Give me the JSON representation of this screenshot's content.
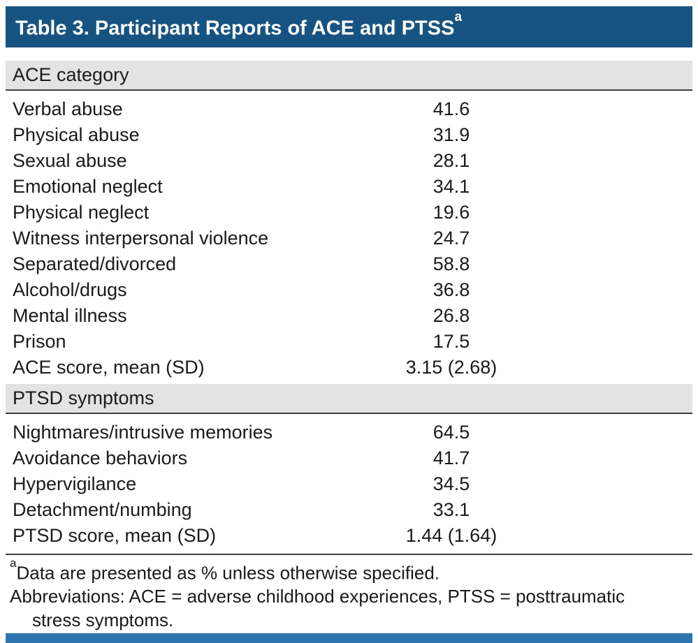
{
  "table": {
    "title": "Table 3. Participant Reports of ACE and PTSS",
    "title_superscript": "a",
    "sections": [
      {
        "header": "ACE category",
        "rows": [
          {
            "label": "Verbal abuse",
            "value": "41.6"
          },
          {
            "label": "Physical abuse",
            "value": "31.9"
          },
          {
            "label": "Sexual abuse",
            "value": "28.1"
          },
          {
            "label": "Emotional neglect",
            "value": "34.1"
          },
          {
            "label": "Physical neglect",
            "value": "19.6"
          },
          {
            "label": "Witness interpersonal violence",
            "value": "24.7"
          },
          {
            "label": "Separated/divorced",
            "value": "58.8"
          },
          {
            "label": "Alcohol/drugs",
            "value": "36.8"
          },
          {
            "label": "Mental illness",
            "value": "26.8"
          },
          {
            "label": "Prison",
            "value": "17.5"
          },
          {
            "label": "ACE score, mean (SD)",
            "value": "3.15 (2.68)"
          }
        ]
      },
      {
        "header": "PTSD symptoms",
        "rows": [
          {
            "label": "Nightmares/intrusive memories",
            "value": "64.5"
          },
          {
            "label": "Avoidance behaviors",
            "value": "41.7"
          },
          {
            "label": "Hypervigilance",
            "value": "34.5"
          },
          {
            "label": "Detachment/numbing",
            "value": "33.1"
          },
          {
            "label": "PTSD score, mean (SD)",
            "value": "1.44 (1.64)"
          }
        ]
      }
    ],
    "footnotes": {
      "marker": "a",
      "note_text": "Data are presented as % unless otherwise specified.",
      "abbrev_line1": "Abbreviations: ACE = adverse childhood experiences, PTSS = posttraumatic",
      "abbrev_line2": "stress symptoms."
    },
    "colors": {
      "header_bar": "#175380",
      "section_band": "#e3e3e3",
      "rule": "#3f3f3f",
      "bottom_bar": "#2e75ae",
      "title_text": "#ffffff",
      "body_text": "#1a1a1a"
    }
  },
  "chart_data": {
    "type": "table",
    "title": "Table 3. Participant Reports of ACE and PTSS (a)",
    "columns": [
      "Item",
      "Value"
    ],
    "groups": [
      {
        "name": "ACE category",
        "categories": [
          "Verbal abuse",
          "Physical abuse",
          "Sexual abuse",
          "Emotional neglect",
          "Physical neglect",
          "Witness interpersonal violence",
          "Separated/divorced",
          "Alcohol/drugs",
          "Mental illness",
          "Prison",
          "ACE score, mean (SD)"
        ],
        "values": [
          "41.6",
          "31.9",
          "28.1",
          "34.1",
          "19.6",
          "24.7",
          "58.8",
          "36.8",
          "26.8",
          "17.5",
          "3.15 (2.68)"
        ]
      },
      {
        "name": "PTSD symptoms",
        "categories": [
          "Nightmares/intrusive memories",
          "Avoidance behaviors",
          "Hypervigilance",
          "Detachment/numbing",
          "PTSD score, mean (SD)"
        ],
        "values": [
          "64.5",
          "41.7",
          "34.5",
          "33.1",
          "1.44 (1.64)"
        ]
      }
    ],
    "footnote": "a: Data are presented as % unless otherwise specified."
  }
}
